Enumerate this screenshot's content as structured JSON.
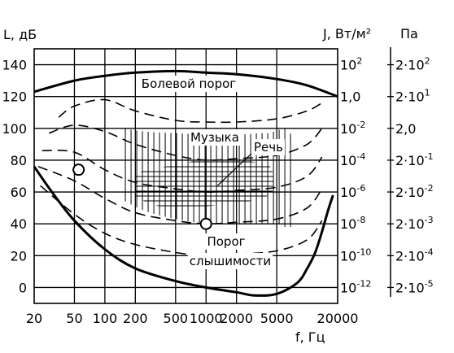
{
  "chart_data": {
    "type": "line",
    "xlabel": "f, Гц",
    "ylabel_left": "L, дБ",
    "ylabel_right_intensity": "J, Вт/м²",
    "ylabel_right_pressure": "Па",
    "xscale": "log",
    "xlim": [
      20,
      20000
    ],
    "ylim": [
      -10,
      150
    ],
    "x_ticks": [
      20,
      50,
      100,
      200,
      500,
      1000,
      2000,
      5000,
      20000
    ],
    "x_tick_labels": [
      "20",
      "50",
      "100",
      "200",
      "500",
      "1000",
      "2000",
      "5000",
      "20000"
    ],
    "y_ticks": [
      0,
      20,
      40,
      60,
      80,
      100,
      120,
      140
    ],
    "y_tick_labels": [
      "0",
      "20",
      "40",
      "60",
      "80",
      "100",
      "120",
      "140"
    ],
    "intensity_ticks": [
      {
        "L": 140,
        "base": "10",
        "exp": "2"
      },
      {
        "L": 120,
        "base": "1,0",
        "exp": ""
      },
      {
        "L": 100,
        "base": "10",
        "exp": "-2"
      },
      {
        "L": 80,
        "base": "10",
        "exp": "-4"
      },
      {
        "L": 60,
        "base": "10",
        "exp": "-6"
      },
      {
        "L": 40,
        "base": "10",
        "exp": "-8"
      },
      {
        "L": 20,
        "base": "10",
        "exp": "-10"
      },
      {
        "L": 0,
        "base": "10",
        "exp": "-12"
      }
    ],
    "pressure_ticks": [
      {
        "L": 140,
        "base": "2·10",
        "exp": "2"
      },
      {
        "L": 120,
        "base": "2·10",
        "exp": "1"
      },
      {
        "L": 100,
        "base": "2,0",
        "exp": ""
      },
      {
        "L": 80,
        "base": "2·10",
        "exp": "-1"
      },
      {
        "L": 60,
        "base": "2·10",
        "exp": "-2"
      },
      {
        "L": 40,
        "base": "2·10",
        "exp": "-3"
      },
      {
        "L": 20,
        "base": "2·10",
        "exp": "-4"
      },
      {
        "L": 0,
        "base": "2·10",
        "exp": "-5"
      }
    ],
    "grid": true,
    "region_labels": {
      "pain": "Болевой порог",
      "music": "Музыка",
      "speech": "Речь",
      "hearing_line1": "Порог",
      "hearing_line2": "слышимости"
    },
    "series": [
      {
        "style": "bold",
        "x": [
          20,
          50,
          100,
          200,
          500,
          1000,
          2000,
          5000,
          10000,
          20000
        ],
        "y": [
          123,
          130,
          133,
          135,
          136,
          135,
          134,
          131,
          127,
          120
        ]
      },
      {
        "style": "bold",
        "x": [
          20,
          30,
          50,
          100,
          200,
          500,
          1000,
          2000,
          3000,
          5000,
          8000,
          10000,
          12000,
          14000,
          16000,
          18000
        ],
        "y": [
          76,
          60,
          42,
          24,
          12,
          4,
          0,
          -3,
          -5,
          -4,
          3,
          12,
          22,
          35,
          48,
          58
        ]
      },
      {
        "style": "dashed",
        "x": [
          35,
          50,
          100,
          200,
          500,
          1000,
          2000,
          5000,
          10000,
          14000
        ],
        "y": [
          107,
          114,
          118,
          111,
          105,
          104,
          104,
          106,
          111,
          116
        ]
      },
      {
        "style": "dashed",
        "x": [
          28,
          50,
          100,
          200,
          500,
          1000,
          2000,
          5000,
          10000,
          14000
        ],
        "y": [
          97,
          102,
          98,
          90,
          83,
          80,
          81,
          83,
          90,
          100
        ]
      },
      {
        "style": "dashed",
        "x": [
          24,
          50,
          100,
          200,
          500,
          1000,
          2000,
          5000,
          10000,
          14000
        ],
        "y": [
          86,
          85,
          74,
          66,
          62,
          60,
          61,
          63,
          70,
          82
        ]
      },
      {
        "style": "dashed",
        "x": [
          22,
          50,
          100,
          200,
          500,
          1000,
          2000,
          5000,
          10000,
          14000
        ],
        "y": [
          76,
          67,
          56,
          47,
          42,
          40,
          41,
          43,
          50,
          62
        ]
      },
      {
        "style": "dashed",
        "x": [
          23,
          50,
          100,
          200,
          500,
          1000,
          2000,
          5000,
          10000,
          14000
        ],
        "y": [
          64,
          46,
          34,
          27,
          22,
          20,
          21,
          23,
          30,
          42
        ]
      }
    ],
    "markers": [
      {
        "x": 55,
        "y": 74
      },
      {
        "x": 1000,
        "y": 40
      }
    ]
  }
}
